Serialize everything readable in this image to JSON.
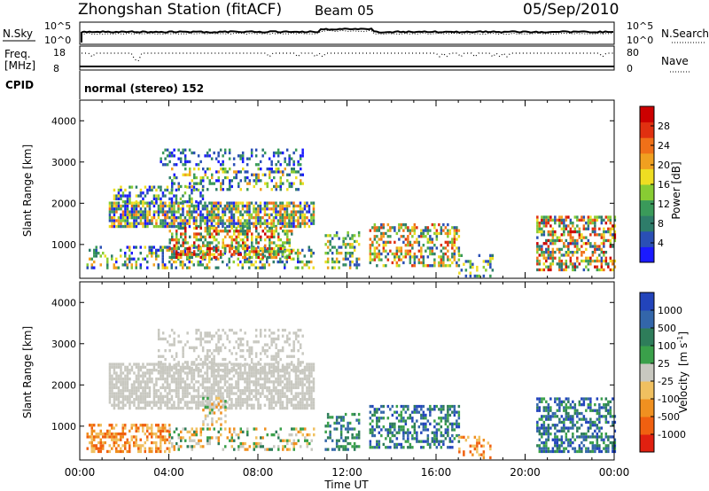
{
  "header": {
    "station": "Zhongshan Station (fitACF)",
    "beam": "Beam 05",
    "date": "05/Sep/2010"
  },
  "status_panels": {
    "nsky_label": "N.Sky",
    "nsky_ticks": [
      "10^5",
      "10^0"
    ],
    "nsearch_label": "N.Search",
    "nsearch_ticks": [
      "10^5",
      "10^0"
    ],
    "freq_label": "Freq.",
    "freq_unit": "[MHz]",
    "freq_ticks": [
      "18",
      "8"
    ],
    "nave_label": "Nave",
    "nave_ticks": [
      "80",
      "0"
    ],
    "cpid_label": "CPID",
    "cpid_text": "normal (stereo) 152"
  },
  "chart_data": [
    {
      "type": "heatmap",
      "panel": "power",
      "ylabel": "Slant Range [km]",
      "xlabel": "",
      "x_ticks": [
        "00:00",
        "04:00",
        "08:00",
        "12:00",
        "16:00",
        "20:00",
        "00:00"
      ],
      "xlim_hours": [
        0,
        24
      ],
      "ylim_km": [
        180,
        4500
      ],
      "y_ticks": [
        1000,
        2000,
        3000,
        4000
      ],
      "colorbar": {
        "label": "Power [dB]",
        "ticks": [
          "4",
          "8",
          "12",
          "16",
          "20",
          "24",
          "28"
        ],
        "colors": [
          "#1a1aff",
          "#2a4fb5",
          "#2e7d6a",
          "#3a9a5a",
          "#88cc33",
          "#eedd22",
          "#f0a020",
          "#f07018",
          "#e03010",
          "#cc0000"
        ]
      },
      "clusters": [
        {
          "t0": 0.3,
          "t1": 10.5,
          "r0": 400,
          "r1": 900,
          "density": 0.35,
          "cmin": 0,
          "cmax": 6
        },
        {
          "t0": 1.3,
          "t1": 10.5,
          "r0": 1400,
          "r1": 2000,
          "density": 0.75,
          "cmin": 0,
          "cmax": 7
        },
        {
          "t0": 1.5,
          "t1": 5.5,
          "r0": 2000,
          "r1": 2400,
          "density": 0.45,
          "cmin": 0,
          "cmax": 5
        },
        {
          "t0": 4.0,
          "t1": 10.0,
          "r0": 2300,
          "r1": 2800,
          "density": 0.35,
          "cmin": 0,
          "cmax": 6
        },
        {
          "t0": 3.5,
          "t1": 10.0,
          "r0": 2900,
          "r1": 3300,
          "density": 0.3,
          "cmin": 0,
          "cmax": 3
        },
        {
          "t0": 4.0,
          "t1": 9.5,
          "r0": 650,
          "r1": 1400,
          "density": 0.55,
          "cmin": 2,
          "cmax": 9
        },
        {
          "t0": 11.0,
          "t1": 12.5,
          "r0": 400,
          "r1": 1300,
          "density": 0.4,
          "cmin": 1,
          "cmax": 6
        },
        {
          "t0": 13.0,
          "t1": 17.0,
          "r0": 450,
          "r1": 1500,
          "density": 0.5,
          "cmin": 1,
          "cmax": 8
        },
        {
          "t0": 17.0,
          "t1": 18.5,
          "r0": 200,
          "r1": 700,
          "density": 0.3,
          "cmin": 1,
          "cmax": 5
        },
        {
          "t0": 20.5,
          "t1": 24.0,
          "r0": 350,
          "r1": 1650,
          "density": 0.55,
          "cmin": 1,
          "cmax": 9
        }
      ]
    },
    {
      "type": "heatmap",
      "panel": "velocity",
      "ylabel": "Slant Range [km]",
      "xlabel": "Time UT",
      "x_ticks": [
        "00:00",
        "04:00",
        "08:00",
        "12:00",
        "16:00",
        "20:00",
        "00:00"
      ],
      "xlim_hours": [
        0,
        24
      ],
      "ylim_km": [
        180,
        4500
      ],
      "y_ticks": [
        1000,
        2000,
        3000,
        4000
      ],
      "colorbar": {
        "label": "Velocity",
        "unit": "[m s",
        "unit_exp": "-1",
        "unit_end": "]",
        "ticks": [
          "1000",
          "500",
          "100",
          "25",
          "-25",
          "-100",
          "-500",
          "-1000"
        ],
        "colors": [
          "#2244bb",
          "#3366aa",
          "#2e7d5a",
          "#3aa04a",
          "#c8c8c0",
          "#f0c060",
          "#f09020",
          "#f06010",
          "#e02010"
        ]
      },
      "clusters": [
        {
          "t0": 0.3,
          "t1": 4.0,
          "r0": 350,
          "r1": 1000,
          "density": 0.5,
          "cmin": 5,
          "cmax": 7
        },
        {
          "t0": 4.0,
          "t1": 10.5,
          "r0": 400,
          "r1": 900,
          "density": 0.3,
          "cmin": 2,
          "cmax": 6
        },
        {
          "t0": 1.3,
          "t1": 10.5,
          "r0": 1400,
          "r1": 2500,
          "density": 0.7,
          "cmin": 4,
          "cmax": 4
        },
        {
          "t0": 3.5,
          "t1": 10.0,
          "r0": 2300,
          "r1": 3300,
          "density": 0.3,
          "cmin": 4,
          "cmax": 4
        },
        {
          "t0": 5.5,
          "t1": 6.5,
          "r0": 1000,
          "r1": 1700,
          "density": 0.4,
          "cmin": 3,
          "cmax": 6
        },
        {
          "t0": 11.0,
          "t1": 12.5,
          "r0": 400,
          "r1": 1300,
          "density": 0.4,
          "cmin": 1,
          "cmax": 3
        },
        {
          "t0": 13.0,
          "t1": 17.0,
          "r0": 450,
          "r1": 1500,
          "density": 0.5,
          "cmin": 0,
          "cmax": 3
        },
        {
          "t0": 17.0,
          "t1": 18.5,
          "r0": 200,
          "r1": 700,
          "density": 0.3,
          "cmin": 5,
          "cmax": 7
        },
        {
          "t0": 20.5,
          "t1": 24.0,
          "r0": 350,
          "r1": 1650,
          "density": 0.55,
          "cmin": 0,
          "cmax": 3
        }
      ]
    }
  ]
}
